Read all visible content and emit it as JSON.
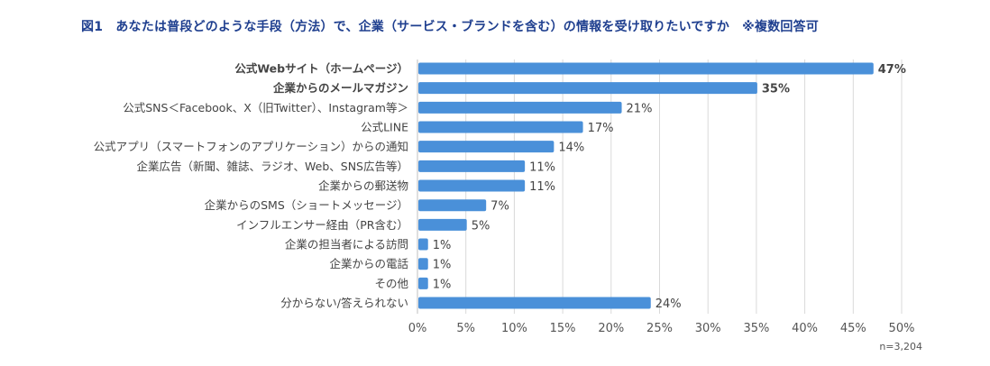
{
  "chart_data": {
    "type": "bar",
    "orientation": "horizontal",
    "title": "図1　あなたは普段どのような手段（方法）で、企業（サービス・ブランドを含む）の情報を受け取りたいですか　※複数回答可",
    "categories": [
      "公式Webサイト（ホームページ）",
      "企業からのメールマガジン",
      "公式SNS＜Facebook、X（旧Twitter）、Instagram等＞",
      "公式LINE",
      "公式アプリ（スマートフォンのアプリケーション）からの通知",
      "企業広告（新聞、雑誌、ラジオ、Web、SNS広告等）",
      "企業からの郵送物",
      "企業からのSMS（ショートメッセージ）",
      "インフルエンサー経由（PR含む）",
      "企業の担当者による訪問",
      "企業からの電話",
      "その他",
      "分からない/答えられない"
    ],
    "values": [
      47,
      35,
      21,
      17,
      14,
      11,
      11,
      7,
      5,
      1,
      1,
      1,
      24
    ],
    "value_labels": [
      "47%",
      "35%",
      "21%",
      "17%",
      "14%",
      "11%",
      "11%",
      "7%",
      "5%",
      "1%",
      "1%",
      "1%",
      "24%"
    ],
    "highlighted": [
      0,
      1
    ],
    "xlim": [
      0,
      50
    ],
    "xticks": [
      "0%",
      "5%",
      "10%",
      "15%",
      "20%",
      "25%",
      "30%",
      "35%",
      "40%",
      "45%",
      "50%"
    ],
    "grid": true,
    "bar_color": "#4a90d9",
    "title_color": "#1f3f8f",
    "note": "n=3,204"
  }
}
